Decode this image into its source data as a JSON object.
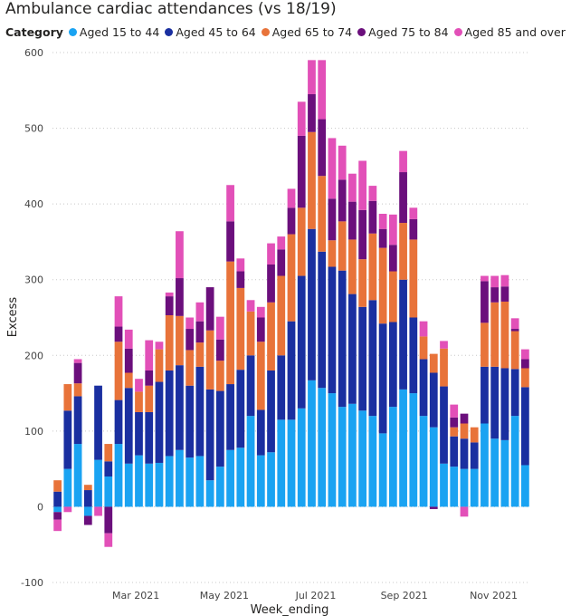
{
  "chart_data": {
    "type": "bar",
    "stacked": true,
    "title": "Ambulance cardiac attendances (vs 18/19)",
    "legend_title": "Category",
    "xlabel": "Week_ending",
    "ylabel": "Excess",
    "ylim": [
      -100,
      600
    ],
    "yticks": [
      -100,
      0,
      100,
      200,
      300,
      400,
      500,
      600
    ],
    "yticklabels": [
      "-100",
      "0",
      "100",
      "200",
      "300",
      "400",
      "500",
      "600"
    ],
    "xticklabels": [
      {
        "label": "Mar 2021",
        "index": 7.7
      },
      {
        "label": "May 2021",
        "index": 16.4
      },
      {
        "label": "Jul 2021",
        "index": 25.4
      },
      {
        "label": "Sep 2021",
        "index": 34.1
      },
      {
        "label": "Nov 2021",
        "index": 42.9
      }
    ],
    "grid": true,
    "series": [
      {
        "name": "Aged 15 to 44",
        "color": "#1aa3f2",
        "values": [
          -7,
          50,
          83,
          -12,
          62,
          40,
          83,
          57,
          68,
          57,
          58,
          67,
          75,
          65,
          67,
          35,
          53,
          75,
          78,
          120,
          68,
          72,
          115,
          115,
          130,
          167,
          157,
          150,
          132,
          136,
          127,
          120,
          97,
          132,
          155,
          150,
          120,
          105,
          57,
          53,
          50,
          50,
          110,
          90,
          88,
          120,
          55
        ]
      },
      {
        "name": "Aged 45 to 64",
        "color": "#1a2fa0",
        "values": [
          20,
          77,
          63,
          22,
          98,
          20,
          58,
          100,
          57,
          68,
          107,
          113,
          112,
          95,
          118,
          120,
          100,
          87,
          103,
          80,
          60,
          108,
          85,
          130,
          175,
          200,
          180,
          167,
          180,
          145,
          137,
          153,
          145,
          112,
          145,
          100,
          75,
          72,
          102,
          40,
          40,
          35,
          75,
          95,
          95,
          62,
          103
        ]
      },
      {
        "name": "Aged 65 to 74",
        "color": "#e8733a",
        "values": [
          15,
          35,
          17,
          7,
          0,
          23,
          77,
          20,
          27,
          35,
          43,
          73,
          65,
          47,
          32,
          78,
          40,
          162,
          108,
          58,
          90,
          90,
          105,
          115,
          90,
          128,
          100,
          35,
          65,
          72,
          63,
          88,
          100,
          67,
          75,
          103,
          30,
          25,
          50,
          12,
          20,
          20,
          58,
          85,
          88,
          50,
          25
        ]
      },
      {
        "name": "Aged 75 to 84",
        "color": "#6b0f7c",
        "values": [
          -10,
          0,
          27,
          -12,
          0,
          -35,
          20,
          32,
          0,
          20,
          0,
          25,
          50,
          28,
          28,
          57,
          28,
          53,
          22,
          0,
          32,
          50,
          35,
          35,
          95,
          50,
          75,
          55,
          55,
          50,
          65,
          43,
          25,
          35,
          67,
          27,
          0,
          -3,
          0,
          13,
          13,
          0,
          55,
          20,
          20,
          3,
          12
        ]
      },
      {
        "name": "Aged 85 and over",
        "color": "#e250b8",
        "values": [
          -15,
          -7,
          5,
          0,
          -12,
          -18,
          40,
          25,
          17,
          40,
          10,
          5,
          62,
          15,
          25,
          0,
          30,
          48,
          17,
          15,
          14,
          28,
          17,
          25,
          45,
          45,
          78,
          80,
          45,
          37,
          65,
          20,
          20,
          40,
          28,
          15,
          20,
          0,
          10,
          17,
          -13,
          0,
          7,
          15,
          15,
          14,
          13
        ]
      }
    ]
  }
}
